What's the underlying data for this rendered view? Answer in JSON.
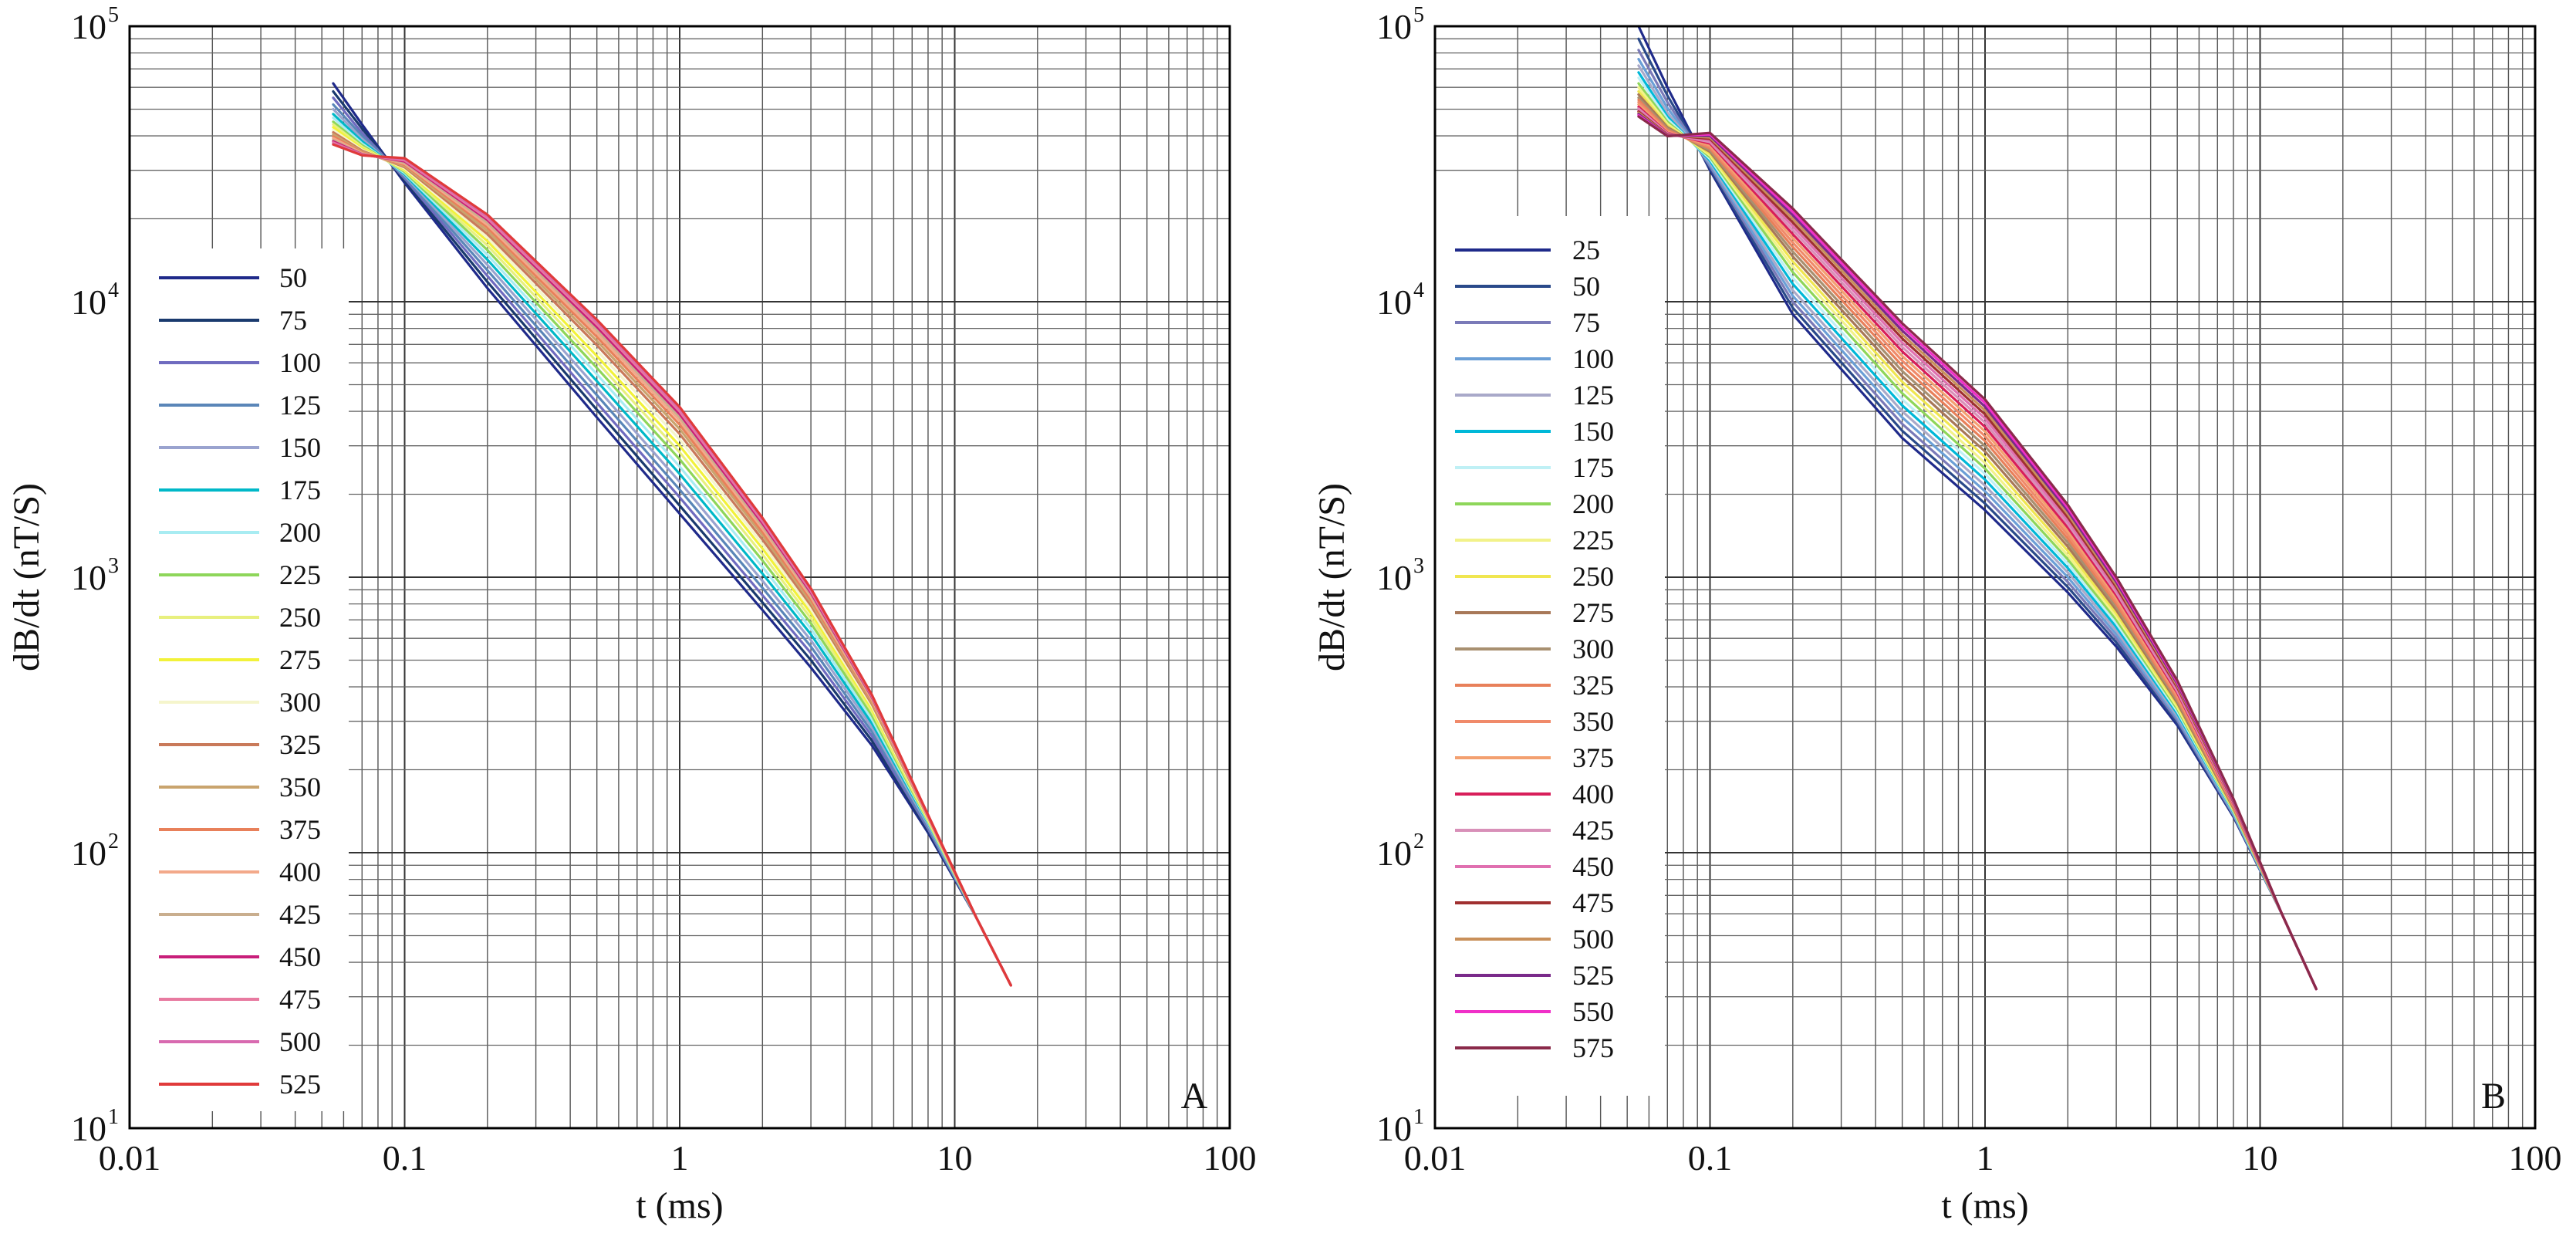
{
  "colors": {
    "panel_a": [
      "#1f2a8a",
      "#1a3a6e",
      "#6f6bbf",
      "#5a86b8",
      "#9aa3cf",
      "#00b8c8",
      "#a8ecf2",
      "#8ed65a",
      "#e8f07e",
      "#f2f23a",
      "#f5f5cc",
      "#c97a5a",
      "#c9a46e",
      "#e8805a",
      "#f3a98a",
      "#c9ae8e",
      "#c81e7a",
      "#e87aa0",
      "#d86ab0",
      "#e03a3a"
    ],
    "panel_b": [
      "#1f2a8a",
      "#2a4a8a",
      "#7a7ab8",
      "#6b9fd6",
      "#a9a9c9",
      "#00b8d8",
      "#bff0f5",
      "#8ed65a",
      "#f2f28a",
      "#f0e650",
      "#a87858",
      "#a89070",
      "#e8805a",
      "#f08a6a",
      "#f3a070",
      "#d81e5a",
      "#d890b8",
      "#e070b0",
      "#a03030",
      "#c9905a",
      "#7a2a8a",
      "#f030c8",
      "#8a2a4a"
    ]
  },
  "chart_data": [
    {
      "type": "line",
      "panel_label": "A",
      "xscale": "log",
      "yscale": "log",
      "xlim": [
        0.01,
        100
      ],
      "ylim": [
        10,
        100000
      ],
      "xlabel": "t (ms)",
      "ylabel": "dB/dt (nT/S)",
      "x_ticks": [
        "0.01",
        "0.1",
        "1",
        "10",
        "100"
      ],
      "y_tick_base": "10",
      "y_tick_exps": [
        "1",
        "2",
        "3",
        "4",
        "5"
      ],
      "legend_position": "upper-left",
      "x": [
        0.055,
        0.07,
        0.1,
        0.2,
        0.5,
        1,
        2,
        3,
        5,
        8,
        12,
        16
      ],
      "series": [
        {
          "name": "50",
          "values": [
            62000,
            44000,
            27000,
            11200,
            3800,
            1700,
            760,
            470,
            245,
            118,
            58,
            33
          ]
        },
        {
          "name": "75",
          "values": [
            58000,
            42500,
            27500,
            11800,
            4050,
            1820,
            810,
            500,
            255,
            120,
            58,
            33
          ]
        },
        {
          "name": "100",
          "values": [
            55000,
            41000,
            28000,
            12400,
            4300,
            1950,
            860,
            530,
            265,
            122,
            58,
            33
          ]
        },
        {
          "name": "125",
          "values": [
            52000,
            40000,
            28400,
            13000,
            4580,
            2080,
            915,
            560,
            275,
            124,
            58,
            33
          ]
        },
        {
          "name": "150",
          "values": [
            50000,
            39000,
            28700,
            13600,
            4860,
            2220,
            970,
            590,
            285,
            126,
            58,
            33
          ]
        },
        {
          "name": "175",
          "values": [
            48000,
            38200,
            29000,
            14200,
            5150,
            2370,
            1030,
            620,
            295,
            128,
            58,
            33
          ]
        },
        {
          "name": "200",
          "values": [
            46500,
            37500,
            29300,
            14800,
            5450,
            2520,
            1090,
            650,
            305,
            129,
            58,
            33
          ]
        },
        {
          "name": "225",
          "values": [
            45000,
            37000,
            29600,
            15400,
            5750,
            2680,
            1150,
            680,
            315,
            130,
            58,
            33
          ]
        },
        {
          "name": "250",
          "values": [
            44000,
            36500,
            29900,
            16000,
            6050,
            2840,
            1210,
            710,
            325,
            131,
            58,
            33
          ]
        },
        {
          "name": "275",
          "values": [
            43000,
            36000,
            30200,
            16600,
            6350,
            3000,
            1270,
            740,
            333,
            132,
            58,
            33
          ]
        },
        {
          "name": "300",
          "values": [
            42000,
            35600,
            30500,
            17100,
            6650,
            3160,
            1320,
            765,
            340,
            133,
            58,
            33
          ]
        },
        {
          "name": "325",
          "values": [
            41200,
            35300,
            30800,
            17600,
            6950,
            3310,
            1370,
            790,
            346,
            134,
            58,
            33
          ]
        },
        {
          "name": "350",
          "values": [
            40500,
            35000,
            31100,
            18100,
            7200,
            3450,
            1420,
            810,
            351,
            134,
            58,
            33
          ]
        },
        {
          "name": "375",
          "values": [
            39800,
            34800,
            31400,
            18600,
            7450,
            3580,
            1460,
            830,
            356,
            135,
            58,
            33
          ]
        },
        {
          "name": "400",
          "values": [
            39200,
            34600,
            31700,
            19000,
            7680,
            3700,
            1500,
            848,
            360,
            135,
            58,
            33
          ]
        },
        {
          "name": "425",
          "values": [
            38600,
            34400,
            32000,
            19400,
            7900,
            3810,
            1535,
            864,
            364,
            136,
            58,
            33
          ]
        },
        {
          "name": "450",
          "values": [
            38200,
            34300,
            32300,
            19800,
            8100,
            3910,
            1568,
            878,
            367,
            136,
            58,
            33
          ]
        },
        {
          "name": "475",
          "values": [
            37800,
            34200,
            32600,
            20100,
            8280,
            4000,
            1596,
            890,
            370,
            136,
            58,
            33
          ]
        },
        {
          "name": "500",
          "values": [
            37500,
            34100,
            32900,
            20400,
            8440,
            4080,
            1620,
            900,
            372,
            137,
            58,
            33
          ]
        },
        {
          "name": "525",
          "values": [
            37200,
            34000,
            33200,
            20700,
            8600,
            4150,
            1642,
            910,
            374,
            137,
            58,
            33
          ]
        }
      ]
    },
    {
      "type": "line",
      "panel_label": "B",
      "xscale": "log",
      "yscale": "log",
      "xlim": [
        0.01,
        100
      ],
      "ylim": [
        10,
        100000
      ],
      "xlabel": "t (ms)",
      "ylabel": "dB/dt (nT/S)",
      "x_ticks": [
        "0.01",
        "0.1",
        "1",
        "10",
        "100"
      ],
      "y_tick_base": "10",
      "y_tick_exps": [
        "1",
        "2",
        "3",
        "4",
        "5"
      ],
      "legend_position": "upper-left",
      "x": [
        0.055,
        0.07,
        0.1,
        0.2,
        0.5,
        1,
        2,
        3,
        5,
        8,
        12,
        16
      ],
      "series": [
        {
          "name": "25",
          "values": [
            100000,
            60000,
            30000,
            9000,
            3200,
            1750,
            880,
            560,
            290,
            135,
            60,
            32
          ]
        },
        {
          "name": "50",
          "values": [
            90000,
            56000,
            30500,
            9500,
            3400,
            1850,
            920,
            580,
            296,
            136,
            60,
            32
          ]
        },
        {
          "name": "75",
          "values": [
            82000,
            53000,
            31000,
            10000,
            3600,
            1950,
            960,
            600,
            302,
            137,
            60,
            32
          ]
        },
        {
          "name": "100",
          "values": [
            76000,
            50500,
            31500,
            10500,
            3800,
            2050,
            1000,
            620,
            308,
            138,
            60,
            32
          ]
        },
        {
          "name": "125",
          "values": [
            72000,
            48500,
            32000,
            11000,
            4000,
            2150,
            1040,
            640,
            314,
            139,
            60,
            32
          ]
        },
        {
          "name": "150",
          "values": [
            68000,
            47000,
            32500,
            11600,
            4200,
            2260,
            1080,
            660,
            320,
            140,
            60,
            32
          ]
        },
        {
          "name": "175",
          "values": [
            65000,
            46000,
            33000,
            12200,
            4420,
            2370,
            1120,
            680,
            326,
            141,
            60,
            32
          ]
        },
        {
          "name": "200",
          "values": [
            62000,
            45000,
            33500,
            12800,
            4650,
            2480,
            1160,
            700,
            332,
            142,
            60,
            32
          ]
        },
        {
          "name": "225",
          "values": [
            60000,
            44200,
            34000,
            13400,
            4880,
            2600,
            1200,
            720,
            338,
            143,
            60,
            32
          ]
        },
        {
          "name": "250",
          "values": [
            58000,
            43500,
            34500,
            14000,
            5120,
            2730,
            1245,
            740,
            344,
            144,
            60,
            32
          ]
        },
        {
          "name": "275",
          "values": [
            56500,
            43000,
            35000,
            14600,
            5360,
            2860,
            1290,
            760,
            350,
            145,
            60,
            32
          ]
        },
        {
          "name": "300",
          "values": [
            55000,
            42500,
            35500,
            15200,
            5600,
            2990,
            1335,
            780,
            356,
            146,
            60,
            32
          ]
        },
        {
          "name": "325",
          "values": [
            54000,
            42000,
            36000,
            15800,
            5850,
            3120,
            1380,
            800,
            362,
            147,
            60,
            32
          ]
        },
        {
          "name": "350",
          "values": [
            53000,
            41600,
            36500,
            16400,
            6100,
            3250,
            1425,
            820,
            368,
            148,
            60,
            32
          ]
        },
        {
          "name": "375",
          "values": [
            52000,
            41300,
            37000,
            17000,
            6350,
            3380,
            1470,
            840,
            374,
            149,
            60,
            32
          ]
        },
        {
          "name": "400",
          "values": [
            51000,
            41000,
            37500,
            17600,
            6600,
            3510,
            1515,
            860,
            380,
            150,
            60,
            32
          ]
        },
        {
          "name": "425",
          "values": [
            50200,
            40800,
            38000,
            18200,
            6850,
            3640,
            1560,
            880,
            386,
            151,
            60,
            32
          ]
        },
        {
          "name": "450",
          "values": [
            49500,
            40600,
            38500,
            18800,
            7100,
            3770,
            1605,
            900,
            392,
            152,
            60,
            32
          ]
        },
        {
          "name": "475",
          "values": [
            49000,
            40400,
            39000,
            19400,
            7350,
            3900,
            1650,
            920,
            398,
            153,
            60,
            32
          ]
        },
        {
          "name": "500",
          "values": [
            48500,
            40200,
            39500,
            20000,
            7600,
            4030,
            1695,
            940,
            404,
            154,
            60,
            32
          ]
        },
        {
          "name": "525",
          "values": [
            48000,
            40100,
            40000,
            20600,
            7850,
            4160,
            1740,
            960,
            410,
            155,
            60,
            32
          ]
        },
        {
          "name": "550",
          "values": [
            47500,
            40000,
            40500,
            21200,
            8100,
            4290,
            1785,
            980,
            416,
            156,
            60,
            32
          ]
        },
        {
          "name": "575",
          "values": [
            47000,
            39900,
            41000,
            21800,
            8350,
            4420,
            1830,
            1000,
            422,
            157,
            60,
            32
          ]
        }
      ]
    }
  ]
}
